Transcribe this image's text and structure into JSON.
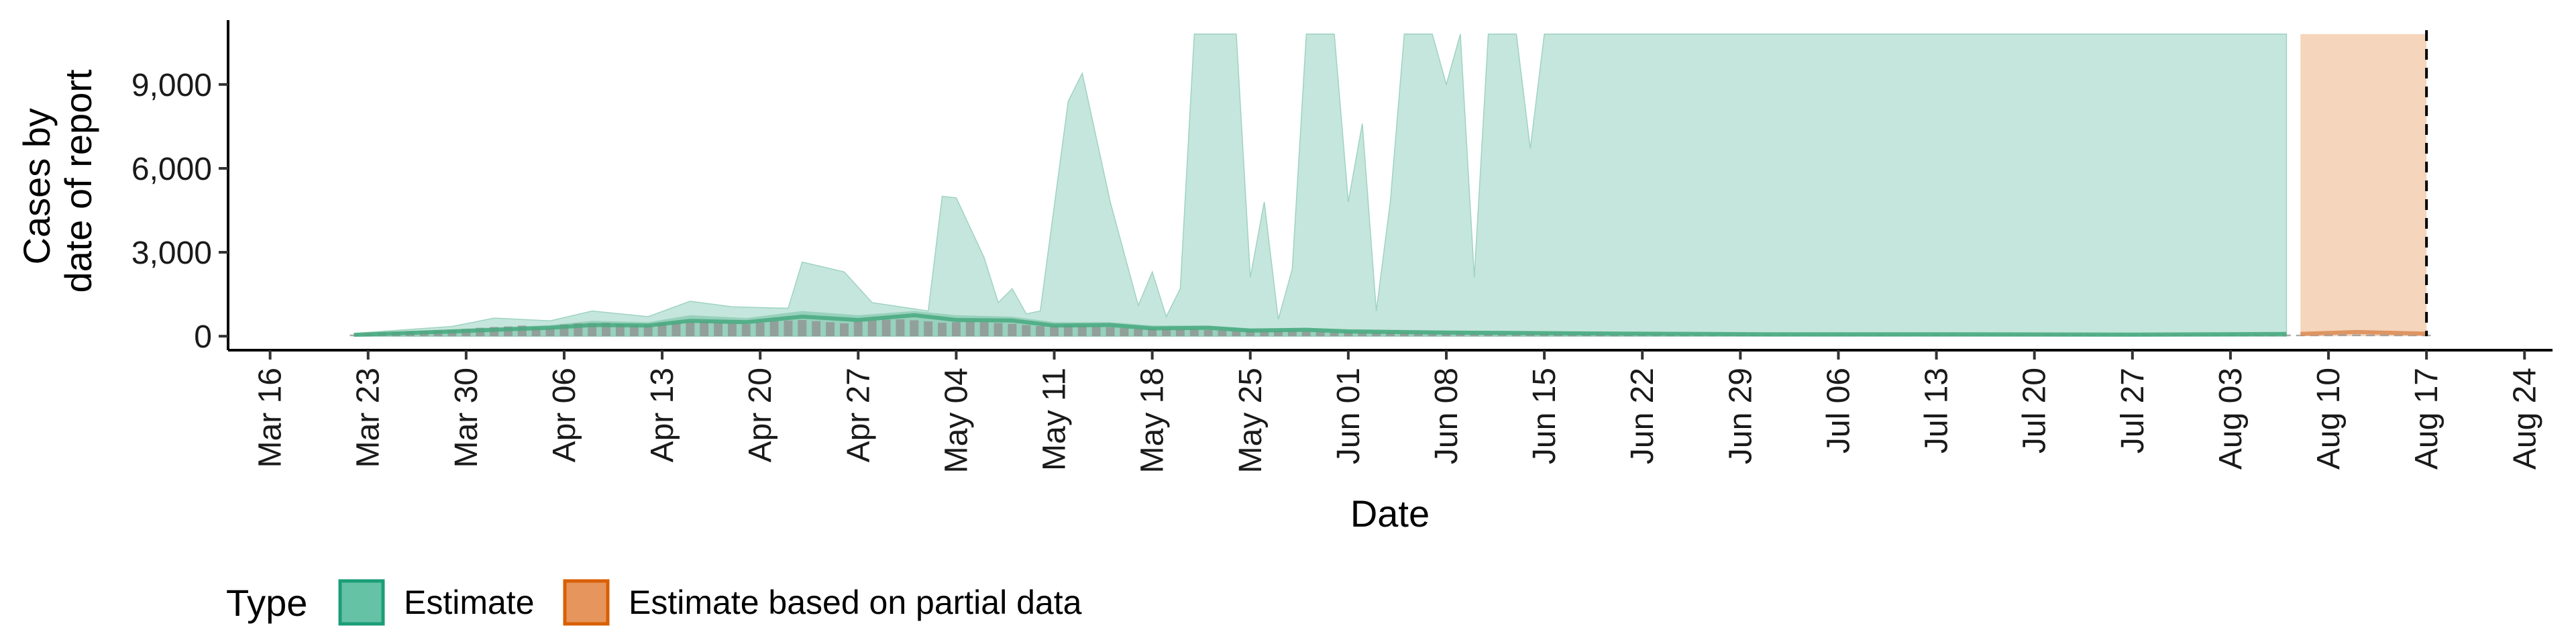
{
  "chart_data": {
    "type": "area",
    "xlabel": "Date",
    "ylabel_lines": [
      "Cases by",
      "date of report"
    ],
    "x_ticks": [
      {
        "date": "2020-03-16",
        "label": "Mar 16"
      },
      {
        "date": "2020-03-23",
        "label": "Mar 23"
      },
      {
        "date": "2020-03-30",
        "label": "Mar 30"
      },
      {
        "date": "2020-04-06",
        "label": "Apr 06"
      },
      {
        "date": "2020-04-13",
        "label": "Apr 13"
      },
      {
        "date": "2020-04-20",
        "label": "Apr 20"
      },
      {
        "date": "2020-04-27",
        "label": "Apr 27"
      },
      {
        "date": "2020-05-04",
        "label": "May 04"
      },
      {
        "date": "2020-05-11",
        "label": "May 11"
      },
      {
        "date": "2020-05-18",
        "label": "May 18"
      },
      {
        "date": "2020-05-25",
        "label": "May 25"
      },
      {
        "date": "2020-06-01",
        "label": "Jun 01"
      },
      {
        "date": "2020-06-08",
        "label": "Jun 08"
      },
      {
        "date": "2020-06-15",
        "label": "Jun 15"
      },
      {
        "date": "2020-06-22",
        "label": "Jun 22"
      },
      {
        "date": "2020-06-29",
        "label": "Jun 29"
      },
      {
        "date": "2020-07-06",
        "label": "Jul 06"
      },
      {
        "date": "2020-07-13",
        "label": "Jul 13"
      },
      {
        "date": "2020-07-20",
        "label": "Jul 20"
      },
      {
        "date": "2020-07-27",
        "label": "Jul 27"
      },
      {
        "date": "2020-08-03",
        "label": "Aug 03"
      },
      {
        "date": "2020-08-10",
        "label": "Aug 10"
      },
      {
        "date": "2020-08-17",
        "label": "Aug 17"
      },
      {
        "date": "2020-08-24",
        "label": "Aug 24"
      }
    ],
    "y_ticks": [
      {
        "value": 0,
        "label": "0"
      },
      {
        "value": 3000,
        "label": "3,000"
      },
      {
        "value": 6000,
        "label": "6,000"
      },
      {
        "value": 9000,
        "label": "9,000"
      }
    ],
    "xlim": [
      "2020-03-13",
      "2020-08-26"
    ],
    "ylim": [
      -500,
      11300
    ],
    "vline_date": "2020-08-17",
    "legend": {
      "title": "Type",
      "position": "bottom-left",
      "items": [
        {
          "label": "Estimate",
          "fill": "#66c2a5",
          "stroke": "#1b9e77"
        },
        {
          "label": "Estimate based on partial data",
          "fill": "#e6955c",
          "stroke": "#d95f02"
        }
      ]
    },
    "colors": {
      "estimate_fill": "#c5e6dc",
      "estimate_inner": "#88c9b3",
      "estimate_line": "#46a97f",
      "partial_fill": "#f5d5bb",
      "partial_inner": "#eeb58c",
      "partial_line": "#d98a52",
      "bars": "#8f8f8f",
      "vline": "#000000"
    },
    "estimate_upper": [
      [
        "2020-03-22",
        100
      ],
      [
        "2020-03-29",
        350
      ],
      [
        "2020-04-01",
        650
      ],
      [
        "2020-04-05",
        550
      ],
      [
        "2020-04-08",
        900
      ],
      [
        "2020-04-12",
        700
      ],
      [
        "2020-04-15",
        1250
      ],
      [
        "2020-04-18",
        1050
      ],
      [
        "2020-04-22",
        1000
      ],
      [
        "2020-04-23",
        2650
      ],
      [
        "2020-04-26",
        2300
      ],
      [
        "2020-04-28",
        1200
      ],
      [
        "2020-05-02",
        900
      ],
      [
        "2020-05-03",
        5000
      ],
      [
        "2020-05-04",
        4950
      ],
      [
        "2020-05-06",
        2800
      ],
      [
        "2020-05-07",
        1200
      ],
      [
        "2020-05-08",
        1700
      ],
      [
        "2020-05-09",
        800
      ],
      [
        "2020-05-10",
        900
      ],
      [
        "2020-05-12",
        8400
      ],
      [
        "2020-05-13",
        9400
      ],
      [
        "2020-05-15",
        4800
      ],
      [
        "2020-05-17",
        1100
      ],
      [
        "2020-05-18",
        2300
      ],
      [
        "2020-05-19",
        700
      ],
      [
        "2020-05-20",
        1700
      ],
      [
        "2020-05-21",
        10800
      ],
      [
        "2020-05-24",
        10800
      ],
      [
        "2020-05-25",
        2100
      ],
      [
        "2020-05-26",
        4800
      ],
      [
        "2020-05-27",
        600
      ],
      [
        "2020-05-28",
        2400
      ],
      [
        "2020-05-29",
        10800
      ],
      [
        "2020-05-31",
        10800
      ],
      [
        "2020-06-01",
        4800
      ],
      [
        "2020-06-02",
        7600
      ],
      [
        "2020-06-03",
        900
      ],
      [
        "2020-06-04",
        4800
      ],
      [
        "2020-06-05",
        10800
      ],
      [
        "2020-06-07",
        10800
      ],
      [
        "2020-06-08",
        9000
      ],
      [
        "2020-06-09",
        10800
      ],
      [
        "2020-06-10",
        2100
      ],
      [
        "2020-06-11",
        10800
      ],
      [
        "2020-06-12",
        10800
      ],
      [
        "2020-06-13",
        10800
      ],
      [
        "2020-06-14",
        6700
      ],
      [
        "2020-06-15",
        10800
      ],
      [
        "2020-08-07",
        10800
      ]
    ],
    "estimate_mid_upper": [
      [
        "2020-03-22",
        80
      ],
      [
        "2020-03-29",
        250
      ],
      [
        "2020-04-05",
        400
      ],
      [
        "2020-04-08",
        550
      ],
      [
        "2020-04-12",
        500
      ],
      [
        "2020-04-15",
        750
      ],
      [
        "2020-04-19",
        650
      ],
      [
        "2020-04-23",
        900
      ],
      [
        "2020-04-27",
        750
      ],
      [
        "2020-05-01",
        900
      ],
      [
        "2020-05-04",
        750
      ],
      [
        "2020-05-08",
        700
      ],
      [
        "2020-05-11",
        500
      ],
      [
        "2020-05-15",
        500
      ],
      [
        "2020-05-18",
        380
      ],
      [
        "2020-05-22",
        380
      ],
      [
        "2020-05-25",
        280
      ],
      [
        "2020-05-29",
        300
      ],
      [
        "2020-06-01",
        250
      ],
      [
        "2020-06-08",
        200
      ],
      [
        "2020-06-15",
        180
      ],
      [
        "2020-06-22",
        150
      ],
      [
        "2020-07-01",
        120
      ],
      [
        "2020-07-13",
        120
      ],
      [
        "2020-07-27",
        110
      ],
      [
        "2020-08-07",
        130
      ]
    ],
    "estimate_median": [
      [
        "2020-03-22",
        50
      ],
      [
        "2020-03-29",
        170
      ],
      [
        "2020-04-05",
        300
      ],
      [
        "2020-04-08",
        400
      ],
      [
        "2020-04-12",
        380
      ],
      [
        "2020-04-15",
        550
      ],
      [
        "2020-04-19",
        500
      ],
      [
        "2020-04-23",
        700
      ],
      [
        "2020-04-27",
        580
      ],
      [
        "2020-05-01",
        750
      ],
      [
        "2020-05-04",
        580
      ],
      [
        "2020-05-08",
        560
      ],
      [
        "2020-05-11",
        380
      ],
      [
        "2020-05-15",
        400
      ],
      [
        "2020-05-18",
        280
      ],
      [
        "2020-05-22",
        300
      ],
      [
        "2020-05-25",
        200
      ],
      [
        "2020-05-29",
        230
      ],
      [
        "2020-06-01",
        170
      ],
      [
        "2020-06-08",
        130
      ],
      [
        "2020-06-15",
        110
      ],
      [
        "2020-06-22",
        90
      ],
      [
        "2020-07-01",
        70
      ],
      [
        "2020-07-13",
        70
      ],
      [
        "2020-07-27",
        60
      ],
      [
        "2020-08-07",
        80
      ]
    ],
    "partial_range": [
      "2020-08-08",
      "2020-08-17"
    ],
    "partial_upper": 10800,
    "partial_median": [
      [
        "2020-08-08",
        80
      ],
      [
        "2020-08-12",
        150
      ],
      [
        "2020-08-17",
        90
      ]
    ],
    "reported_cases": [
      [
        "2020-03-22",
        60
      ],
      [
        "2020-03-23",
        110
      ],
      [
        "2020-03-24",
        140
      ],
      [
        "2020-03-25",
        160
      ],
      [
        "2020-03-26",
        180
      ],
      [
        "2020-03-27",
        190
      ],
      [
        "2020-03-28",
        210
      ],
      [
        "2020-03-29",
        230
      ],
      [
        "2020-03-30",
        260
      ],
      [
        "2020-03-31",
        300
      ],
      [
        "2020-04-01",
        330
      ],
      [
        "2020-04-02",
        350
      ],
      [
        "2020-04-03",
        380
      ],
      [
        "2020-04-04",
        330
      ],
      [
        "2020-04-05",
        300
      ],
      [
        "2020-04-06",
        420
      ],
      [
        "2020-04-07",
        460
      ],
      [
        "2020-04-08",
        470
      ],
      [
        "2020-04-09",
        480
      ],
      [
        "2020-04-10",
        430
      ],
      [
        "2020-04-11",
        400
      ],
      [
        "2020-04-12",
        380
      ],
      [
        "2020-04-13",
        460
      ],
      [
        "2020-04-14",
        500
      ],
      [
        "2020-04-15",
        520
      ],
      [
        "2020-04-16",
        530
      ],
      [
        "2020-04-17",
        490
      ],
      [
        "2020-04-18",
        460
      ],
      [
        "2020-04-19",
        430
      ],
      [
        "2020-04-20",
        480
      ],
      [
        "2020-04-21",
        540
      ],
      [
        "2020-04-22",
        560
      ],
      [
        "2020-04-23",
        580
      ],
      [
        "2020-04-24",
        540
      ],
      [
        "2020-04-25",
        500
      ],
      [
        "2020-04-26",
        460
      ],
      [
        "2020-04-27",
        520
      ],
      [
        "2020-04-28",
        560
      ],
      [
        "2020-04-29",
        590
      ],
      [
        "2020-04-30",
        600
      ],
      [
        "2020-05-01",
        570
      ],
      [
        "2020-05-02",
        530
      ],
      [
        "2020-05-03",
        480
      ],
      [
        "2020-05-04",
        500
      ],
      [
        "2020-05-05",
        520
      ],
      [
        "2020-05-06",
        500
      ],
      [
        "2020-05-07",
        470
      ],
      [
        "2020-05-08",
        440
      ],
      [
        "2020-05-09",
        400
      ],
      [
        "2020-05-10",
        360
      ],
      [
        "2020-05-11",
        380
      ],
      [
        "2020-05-12",
        390
      ],
      [
        "2020-05-13",
        370
      ],
      [
        "2020-05-14",
        340
      ],
      [
        "2020-05-15",
        320
      ],
      [
        "2020-05-16",
        290
      ],
      [
        "2020-05-17",
        260
      ],
      [
        "2020-05-18",
        270
      ],
      [
        "2020-05-19",
        260
      ],
      [
        "2020-05-20",
        250
      ],
      [
        "2020-05-21",
        240
      ],
      [
        "2020-05-22",
        220
      ],
      [
        "2020-05-23",
        200
      ],
      [
        "2020-05-24",
        180
      ],
      [
        "2020-05-25",
        190
      ],
      [
        "2020-05-26",
        200
      ],
      [
        "2020-05-27",
        190
      ],
      [
        "2020-05-28",
        180
      ],
      [
        "2020-05-29",
        170
      ],
      [
        "2020-05-30",
        150
      ],
      [
        "2020-05-31",
        140
      ],
      [
        "2020-06-01",
        150
      ],
      [
        "2020-06-02",
        140
      ],
      [
        "2020-06-03",
        130
      ],
      [
        "2020-06-04",
        120
      ],
      [
        "2020-06-05",
        110
      ],
      [
        "2020-06-06",
        100
      ],
      [
        "2020-06-07",
        90
      ],
      [
        "2020-06-08",
        100
      ],
      [
        "2020-06-09",
        95
      ],
      [
        "2020-06-10",
        90
      ],
      [
        "2020-06-11",
        85
      ],
      [
        "2020-06-12",
        80
      ],
      [
        "2020-06-13",
        75
      ],
      [
        "2020-06-14",
        70
      ],
      [
        "2020-06-15",
        80
      ],
      [
        "2020-06-16",
        75
      ],
      [
        "2020-06-17",
        70
      ],
      [
        "2020-06-18",
        70
      ],
      [
        "2020-06-19",
        65
      ],
      [
        "2020-06-20",
        60
      ],
      [
        "2020-06-21",
        55
      ],
      [
        "2020-06-22",
        60
      ],
      [
        "2020-06-23",
        60
      ],
      [
        "2020-06-24",
        55
      ],
      [
        "2020-06-25",
        55
      ],
      [
        "2020-06-26",
        50
      ],
      [
        "2020-06-27",
        50
      ],
      [
        "2020-06-28",
        45
      ],
      [
        "2020-06-29",
        50
      ],
      [
        "2020-06-30",
        50
      ],
      [
        "2020-07-01",
        50
      ],
      [
        "2020-07-02",
        50
      ],
      [
        "2020-07-03",
        45
      ],
      [
        "2020-07-04",
        45
      ],
      [
        "2020-07-05",
        40
      ],
      [
        "2020-07-06",
        45
      ],
      [
        "2020-07-07",
        45
      ],
      [
        "2020-07-08",
        45
      ],
      [
        "2020-07-09",
        45
      ],
      [
        "2020-07-10",
        40
      ],
      [
        "2020-07-11",
        40
      ],
      [
        "2020-07-12",
        40
      ],
      [
        "2020-07-13",
        45
      ],
      [
        "2020-07-14",
        45
      ],
      [
        "2020-07-15",
        45
      ],
      [
        "2020-07-16",
        45
      ],
      [
        "2020-07-17",
        40
      ],
      [
        "2020-07-18",
        40
      ],
      [
        "2020-07-19",
        40
      ],
      [
        "2020-07-20",
        45
      ],
      [
        "2020-07-21",
        45
      ],
      [
        "2020-07-22",
        45
      ],
      [
        "2020-07-23",
        45
      ],
      [
        "2020-07-24",
        45
      ],
      [
        "2020-07-25",
        40
      ],
      [
        "2020-07-26",
        40
      ],
      [
        "2020-07-27",
        45
      ],
      [
        "2020-07-28",
        50
      ],
      [
        "2020-07-29",
        50
      ],
      [
        "2020-07-30",
        50
      ],
      [
        "2020-07-31",
        50
      ],
      [
        "2020-08-01",
        45
      ],
      [
        "2020-08-02",
        45
      ],
      [
        "2020-08-03",
        55
      ],
      [
        "2020-08-04",
        60
      ],
      [
        "2020-08-05",
        60
      ],
      [
        "2020-08-06",
        60
      ],
      [
        "2020-08-07",
        60
      ],
      [
        "2020-08-08",
        55
      ],
      [
        "2020-08-09",
        50
      ],
      [
        "2020-08-10",
        60
      ],
      [
        "2020-08-11",
        65
      ],
      [
        "2020-08-12",
        65
      ],
      [
        "2020-08-13",
        60
      ],
      [
        "2020-08-14",
        60
      ],
      [
        "2020-08-15",
        55
      ],
      [
        "2020-08-16",
        50
      ],
      [
        "2020-08-17",
        55
      ]
    ]
  }
}
